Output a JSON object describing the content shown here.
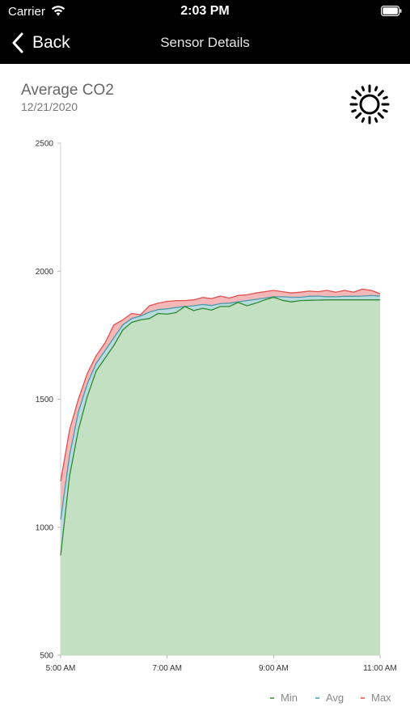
{
  "status_bar": {
    "carrier": "Carrier",
    "time": "2:03 PM"
  },
  "nav": {
    "back_label": "Back",
    "title": "Sensor Details"
  },
  "header": {
    "title": "Average CO2",
    "date": "12/21/2020"
  },
  "icons": {
    "back": "chevron-left-icon",
    "theme": "sun-icon",
    "wifi": "wifi-icon",
    "battery": "battery-icon"
  },
  "colors": {
    "min": "#2e8b2e",
    "avg": "#4a9aa8",
    "max": "#e05050",
    "min_fill": "#c3e0c3",
    "avg_fill": "#b8dbe0",
    "max_fill": "#f4b8b8"
  },
  "chart_data": {
    "type": "area",
    "ylim": [
      500,
      2500
    ],
    "yticks": [
      "500",
      "1000",
      "1500",
      "2000",
      "2500"
    ],
    "xticks": [
      "5:00 AM",
      "7:00 AM",
      "9:00 AM",
      "11:00 AM"
    ],
    "x_minutes_from_5am": [
      0,
      10,
      20,
      30,
      40,
      50,
      60,
      70,
      80,
      90,
      100,
      110,
      120,
      130,
      140,
      150,
      160,
      170,
      180,
      190,
      200,
      210,
      220,
      230,
      240,
      250,
      260,
      270,
      280,
      290,
      300,
      310,
      320,
      330,
      340,
      350,
      360
    ],
    "series": [
      {
        "name": "Min",
        "values": [
          890,
          1200,
          1380,
          1510,
          1610,
          1660,
          1710,
          1770,
          1800,
          1810,
          1815,
          1835,
          1832,
          1838,
          1862,
          1846,
          1855,
          1848,
          1862,
          1862,
          1878,
          1865,
          1875,
          1888,
          1898,
          1886,
          1880,
          1885,
          1886,
          1887,
          1888,
          1888,
          1888,
          1888,
          1888,
          1888,
          1888
        ]
      },
      {
        "name": "Avg",
        "values": [
          1030,
          1280,
          1450,
          1560,
          1640,
          1690,
          1740,
          1790,
          1815,
          1825,
          1840,
          1850,
          1853,
          1858,
          1862,
          1865,
          1870,
          1866,
          1873,
          1875,
          1880,
          1885,
          1890,
          1895,
          1900,
          1900,
          1898,
          1898,
          1902,
          1903,
          1900,
          1900,
          1902,
          1902,
          1903,
          1905,
          1903
        ]
      },
      {
        "name": "Max",
        "values": [
          1180,
          1380,
          1500,
          1600,
          1670,
          1720,
          1790,
          1810,
          1835,
          1830,
          1865,
          1875,
          1882,
          1885,
          1885,
          1888,
          1897,
          1893,
          1903,
          1895,
          1905,
          1908,
          1915,
          1920,
          1925,
          1920,
          1915,
          1918,
          1922,
          1920,
          1925,
          1918,
          1925,
          1918,
          1930,
          1925,
          1912
        ]
      }
    ]
  }
}
